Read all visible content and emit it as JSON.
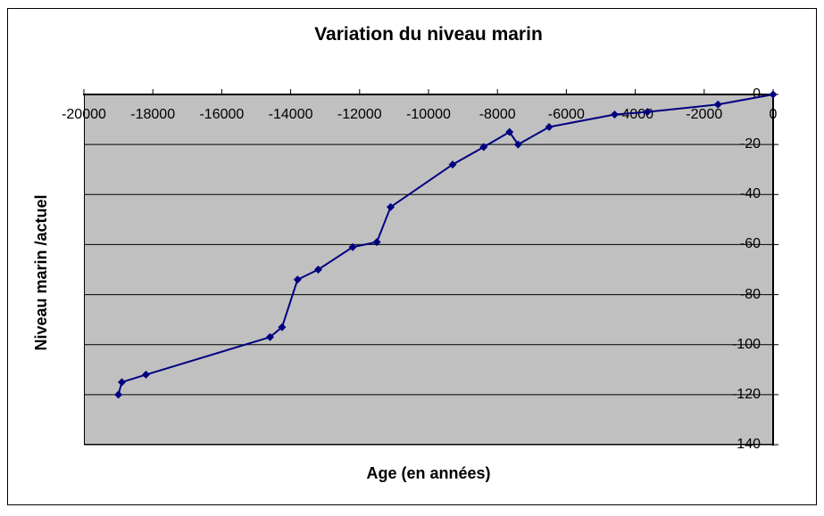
{
  "chart": {
    "title": "Variation du niveau marin",
    "x_axis_title": "Age (en années)",
    "y_axis_title": "Niveau marin /actuel"
  },
  "chart_data": {
    "type": "line",
    "title": "Variation du niveau marin",
    "xlabel": "Age (en années)",
    "ylabel": "Niveau marin /actuel",
    "xlim": [
      -20000,
      0
    ],
    "ylim": [
      -140,
      0
    ],
    "x_ticks": [
      -20000,
      -18000,
      -16000,
      -14000,
      -12000,
      -10000,
      -8000,
      -6000,
      -4000,
      -2000,
      0
    ],
    "y_ticks": [
      0,
      -20,
      -40,
      -60,
      -80,
      -100,
      -120,
      -140
    ],
    "grid": "horizontal",
    "legend": "none",
    "marker": "diamond",
    "line_color": "#000080",
    "marker_color": "#000080",
    "plot_bg": "#c0c0c0",
    "points": [
      [
        -19000,
        -120
      ],
      [
        -18900,
        -115
      ],
      [
        -18200,
        -112
      ],
      [
        -14600,
        -97
      ],
      [
        -14250,
        -93
      ],
      [
        -13800,
        -74
      ],
      [
        -13200,
        -70
      ],
      [
        -12200,
        -61
      ],
      [
        -11500,
        -59
      ],
      [
        -11100,
        -45
      ],
      [
        -9300,
        -28
      ],
      [
        -8400,
        -21
      ],
      [
        -7650,
        -15
      ],
      [
        -7400,
        -20
      ],
      [
        -6500,
        -13
      ],
      [
        -4600,
        -8
      ],
      [
        -3650,
        -7
      ],
      [
        -1600,
        -4
      ],
      [
        0,
        0
      ]
    ]
  }
}
